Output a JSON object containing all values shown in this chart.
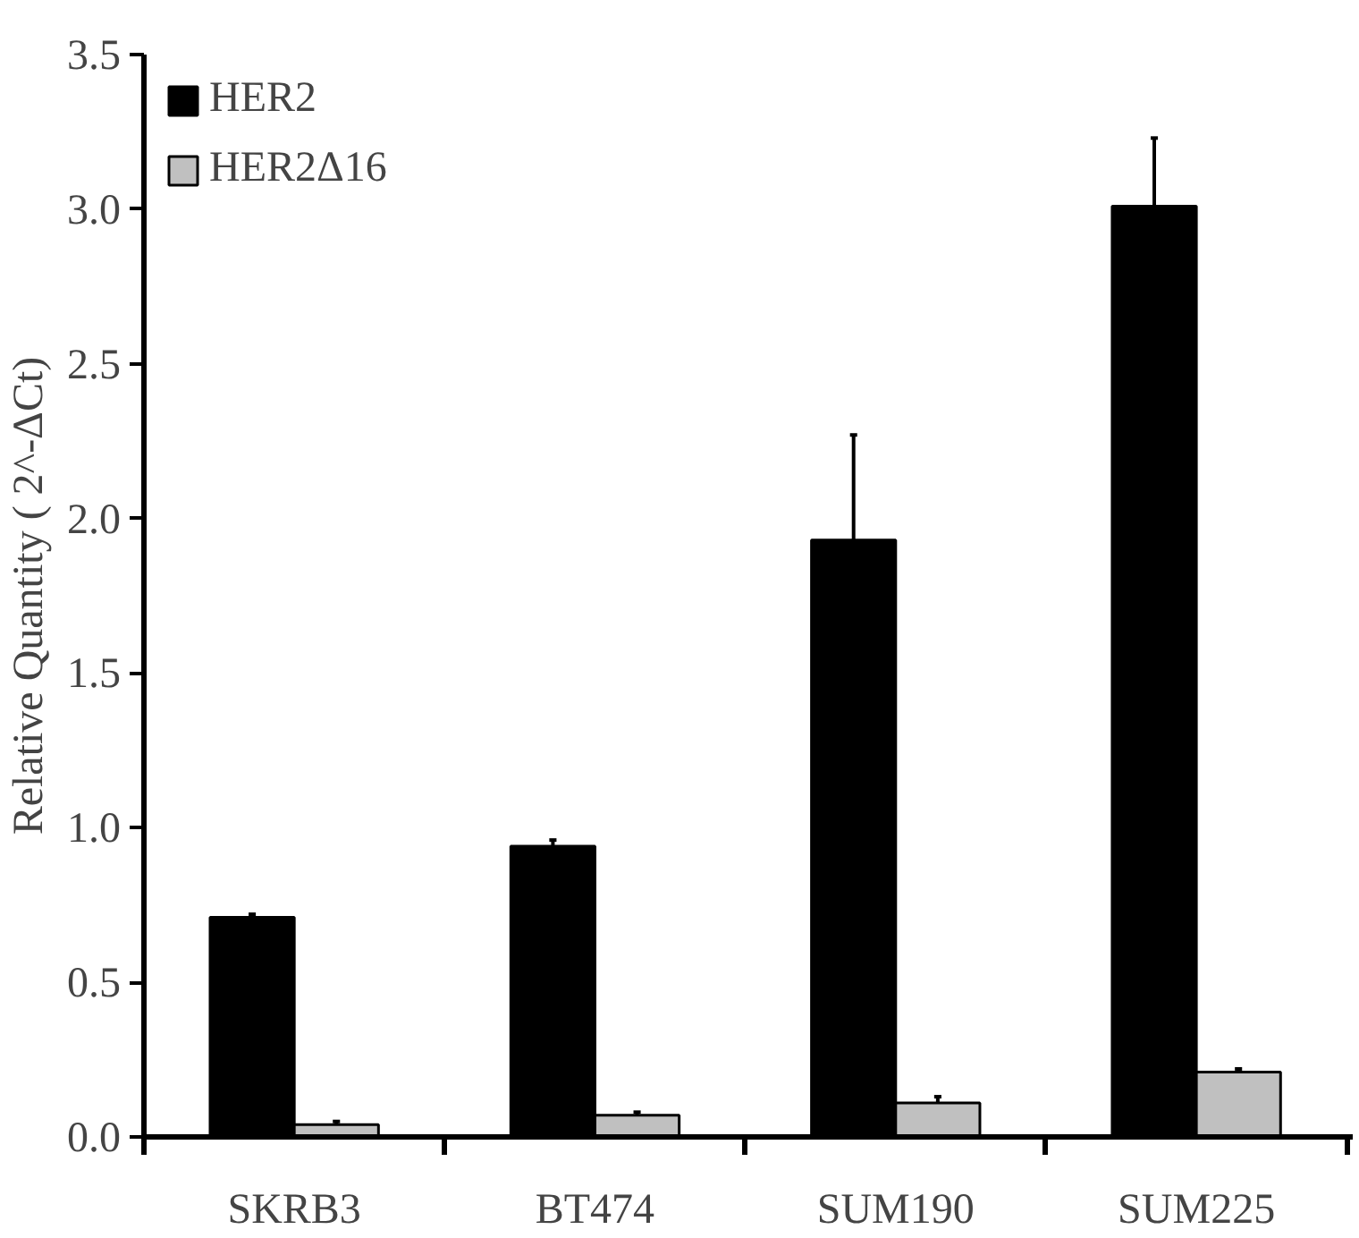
{
  "chart_data": {
    "type": "bar",
    "ylabel": "Relative Quantity ( 2^-ΔCt)",
    "categories": [
      "SKRB3",
      "BT474",
      "SUM190",
      "SUM225"
    ],
    "series": [
      {
        "name": "HER2",
        "color": "#000000",
        "values": [
          0.71,
          0.94,
          1.93,
          3.01
        ],
        "errors": [
          [
            0.71,
            0.72
          ],
          [
            0.94,
            0.96
          ],
          [
            1.93,
            2.27
          ],
          [
            3.01,
            3.23
          ]
        ]
      },
      {
        "name": "HER2Δ16",
        "color": "#c0c0c0",
        "values": [
          0.04,
          0.07,
          0.11,
          0.21
        ],
        "errors": [
          [
            0.04,
            0.05
          ],
          [
            0.07,
            0.08
          ],
          [
            0.11,
            0.13
          ],
          [
            0.21,
            0.22
          ]
        ]
      }
    ],
    "ylim": [
      0,
      3.5
    ],
    "yticks": [
      "0.0",
      0.5,
      "1.0",
      1.5,
      "2.0",
      2.5,
      "3.0",
      3.5
    ],
    "legend": "top left",
    "grid": false
  }
}
